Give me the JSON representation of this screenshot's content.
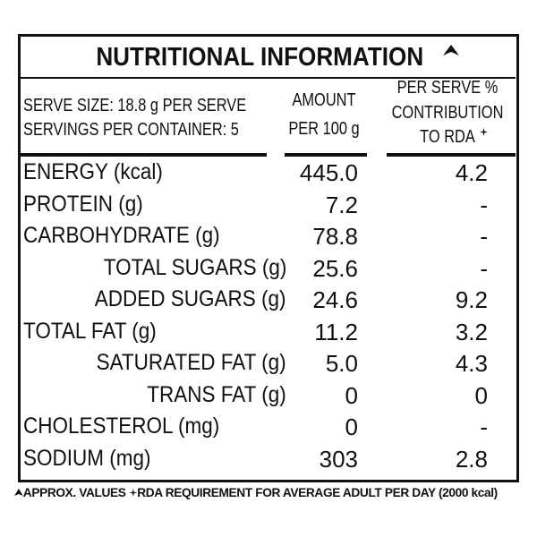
{
  "header": {
    "title": "NUTRITIONAL INFORMATION",
    "serve_size": "SERVE SIZE: 18.8 g PER SERVE",
    "servings": "SERVINGS PER CONTAINER: 5",
    "columns": [
      [
        "AMOUNT",
        "PER 100 g"
      ],
      [
        "PER SERVE %",
        "CONTRIBUTION",
        "TO RDA"
      ]
    ]
  },
  "table": {
    "rows": [
      [
        "ENERGY (kcal)",
        "445.0",
        "4.2"
      ],
      [
        "PROTEIN (g)",
        "7.2",
        "-"
      ],
      [
        "CARBOHYDRATE (g)",
        "78.8",
        "-"
      ],
      [
        "TOTAL SUGARS (g)",
        "25.6",
        "-"
      ],
      [
        "ADDED SUGARS (g)",
        "24.6",
        "9.2"
      ],
      [
        "TOTAL FAT (g)",
        "11.2",
        "3.2"
      ],
      [
        "SATURATED FAT (g)",
        "5.0",
        "4.3"
      ],
      [
        "TRANS FAT (g)",
        "0",
        "0"
      ],
      [
        "CHOLESTEROL (mg)",
        "0",
        "-"
      ],
      [
        "SODIUM (mg)",
        "303",
        "2.8"
      ]
    ]
  },
  "footnote": [
    "APPROX. VALUES",
    "RDA REQUIREMENT FOR AVERAGE ADULT PER DAY (2000 kcal)"
  ]
}
